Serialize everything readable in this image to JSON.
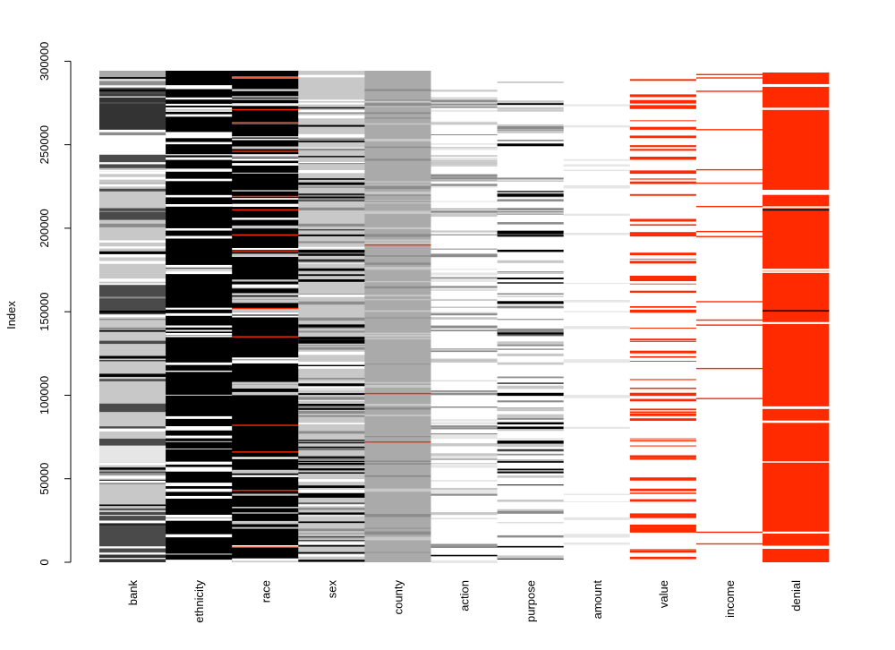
{
  "chart_data": {
    "type": "heatmap",
    "title": "",
    "xlabel": "",
    "ylabel": "Index",
    "ylim": [
      0,
      294300
    ],
    "yticks": [
      0,
      50000,
      100000,
      150000,
      200000,
      250000,
      300000
    ],
    "yticklabels": [
      "0",
      "50000",
      "100000",
      "150000",
      "200000",
      "250000",
      "300000"
    ],
    "n_rows": 294300,
    "legend": "none",
    "grid": false,
    "palette": {
      "black": "#000000",
      "dark": "#333333",
      "darkgrey": "#4a4a4a",
      "grey": "#8c8c8c",
      "midgrey": "#aaaaaa",
      "lightgrey": "#c8c8c8",
      "verylight": "#e6e6e6",
      "white": "#ffffff",
      "missing": "#ff2a00"
    },
    "columns": [
      {
        "name": "bank",
        "base": "lightgrey",
        "bands": [
          {
            "start": 0,
            "end": 6000,
            "color": "dark"
          },
          {
            "start": 6000,
            "end": 30000,
            "color": "darkgrey"
          },
          {
            "start": 60000,
            "end": 70000,
            "color": "verylight"
          },
          {
            "start": 70000,
            "end": 74000,
            "color": "darkgrey"
          },
          {
            "start": 90000,
            "end": 95000,
            "color": "darkgrey"
          },
          {
            "start": 148000,
            "end": 166000,
            "color": "darkgrey"
          },
          {
            "start": 205000,
            "end": 212000,
            "color": "darkgrey"
          },
          {
            "start": 236000,
            "end": 244000,
            "color": "darkgrey"
          },
          {
            "start": 244000,
            "end": 259000,
            "color": "white"
          },
          {
            "start": 259000,
            "end": 284000,
            "color": "dark"
          },
          {
            "start": 284000,
            "end": 294300,
            "color": "midgrey"
          }
        ],
        "lines": {
          "count": 70,
          "colors": [
            "black",
            "grey",
            "white",
            "darkgrey"
          ]
        }
      },
      {
        "name": "ethnicity",
        "base": "black",
        "bands": [],
        "lines": {
          "count": 60,
          "colors": [
            "white"
          ]
        }
      },
      {
        "name": "race",
        "base": "black",
        "bands": [],
        "lines": {
          "count": 55,
          "colors": [
            "white",
            "lightgrey"
          ]
        },
        "missing": [
          9000,
          43000,
          66000,
          82000,
          135000,
          152000,
          186000,
          196000,
          211000,
          219000,
          246000,
          263000,
          271000,
          290000
        ]
      },
      {
        "name": "sex",
        "base": "lightgrey",
        "bands": [],
        "lines": {
          "count": 110,
          "colors": [
            "white",
            "grey",
            "black"
          ]
        }
      },
      {
        "name": "county",
        "base": "midgrey",
        "bands": [],
        "lines": {
          "count": 55,
          "colors": [
            "lightgrey",
            "grey"
          ]
        },
        "missing": [
          72000,
          101000,
          190000
        ]
      },
      {
        "name": "action",
        "base": "white",
        "bands": [
          {
            "start": 272000,
            "end": 277000,
            "color": "grey"
          }
        ],
        "lines": {
          "count": 85,
          "colors": [
            "verylight",
            "lightgrey",
            "grey"
          ]
        },
        "extra_lines": [
          {
            "y": 4000,
            "color": "black"
          }
        ]
      },
      {
        "name": "purpose",
        "base": "white",
        "bands": [],
        "lines": {
          "count": 95,
          "colors": [
            "black",
            "grey",
            "lightgrey"
          ]
        }
      },
      {
        "name": "amount",
        "base": "white",
        "bands": [],
        "lines": {
          "count": 25,
          "colors": [
            "verylight"
          ]
        }
      },
      {
        "name": "value",
        "base": "white",
        "bands": [],
        "lines": {
          "count": 75,
          "colors": [
            "missing"
          ]
        }
      },
      {
        "name": "income",
        "base": "white",
        "bands": [],
        "lines": {
          "count": 0,
          "colors": []
        },
        "missing": [
          11000,
          18000,
          98000,
          116000,
          142000,
          145000,
          156000,
          195000,
          198000,
          213000,
          227000,
          235000,
          259000,
          282000,
          290000,
          292000
        ]
      },
      {
        "name": "denial",
        "base": "missing",
        "bands": [],
        "lines": {
          "count": 14,
          "colors": [
            "white"
          ]
        },
        "extra_lines": [
          {
            "y": 150500,
            "color": "black"
          },
          {
            "y": 211000,
            "color": "black"
          }
        ]
      }
    ]
  }
}
